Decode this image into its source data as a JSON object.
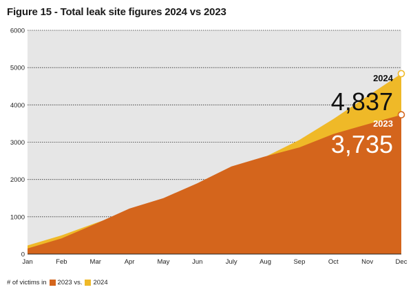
{
  "chart_data": {
    "type": "area",
    "title": "Figure 15 - Total leak site figures 2024 vs 2023",
    "categories": [
      "Jan",
      "Feb",
      "Mar",
      "Apr",
      "May",
      "Jun",
      "July",
      "Aug",
      "Sep",
      "Oct",
      "Nov",
      "Dec"
    ],
    "ylim": [
      0,
      6000
    ],
    "yticks": [
      0,
      1000,
      2000,
      3000,
      4000,
      5000,
      6000
    ],
    "grid": true,
    "series": [
      {
        "name": "2024",
        "color": "#efb928",
        "values": [
          230,
          500,
          830,
          1140,
          1450,
          1830,
          2230,
          2610,
          3060,
          3620,
          4230,
          4837
        ]
      },
      {
        "name": "2023",
        "color": "#d4651c",
        "values": [
          150,
          420,
          810,
          1220,
          1500,
          1900,
          2350,
          2620,
          2860,
          3220,
          3480,
          3735
        ]
      }
    ],
    "annotations": {
      "a2024": {
        "year": "2024",
        "value": "4,837"
      },
      "a2023": {
        "year": "2023",
        "value": "3,735"
      }
    },
    "legend": {
      "prefix": "# of victims in",
      "item1": "2023 vs.",
      "item2": "2024"
    }
  }
}
